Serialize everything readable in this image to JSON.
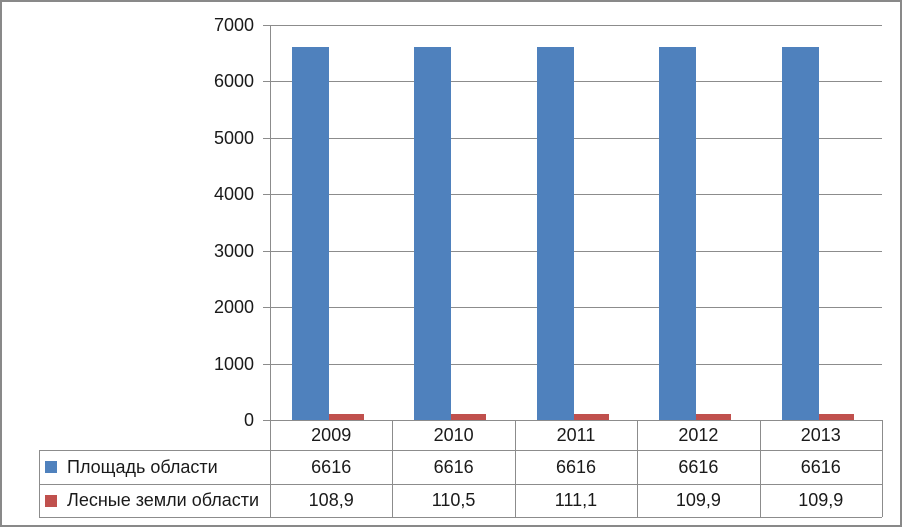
{
  "chart_data": {
    "type": "bar",
    "title": "",
    "categories": [
      "2009",
      "2010",
      "2011",
      "2012",
      "2013"
    ],
    "series": [
      {
        "name": "Площадь области",
        "color": "#4F81BD",
        "values": [
          6616,
          6616,
          6616,
          6616,
          6616
        ],
        "values_display": [
          "6616",
          "6616",
          "6616",
          "6616",
          "6616"
        ]
      },
      {
        "name": "Лесные земли области",
        "color": "#C0504D",
        "values": [
          108.9,
          110.5,
          111.1,
          109.9,
          109.9
        ],
        "values_display": [
          "108,9",
          "110,5",
          "111,1",
          "109,9",
          "109,9"
        ]
      }
    ],
    "ylim": [
      0,
      7000
    ],
    "ytick_interval": 1000,
    "ytick_labels": [
      "0",
      "1000",
      "2000",
      "3000",
      "4000",
      "5000",
      "6000",
      "7000"
    ],
    "grid": true,
    "legend_position": "data-table-left-column",
    "gridline_color": "#8C8C8C",
    "axis_color": "#8C8C8C",
    "frame_border_color": "#898989",
    "text_color": "#1a1a1a",
    "background_color": "#ffffff"
  }
}
